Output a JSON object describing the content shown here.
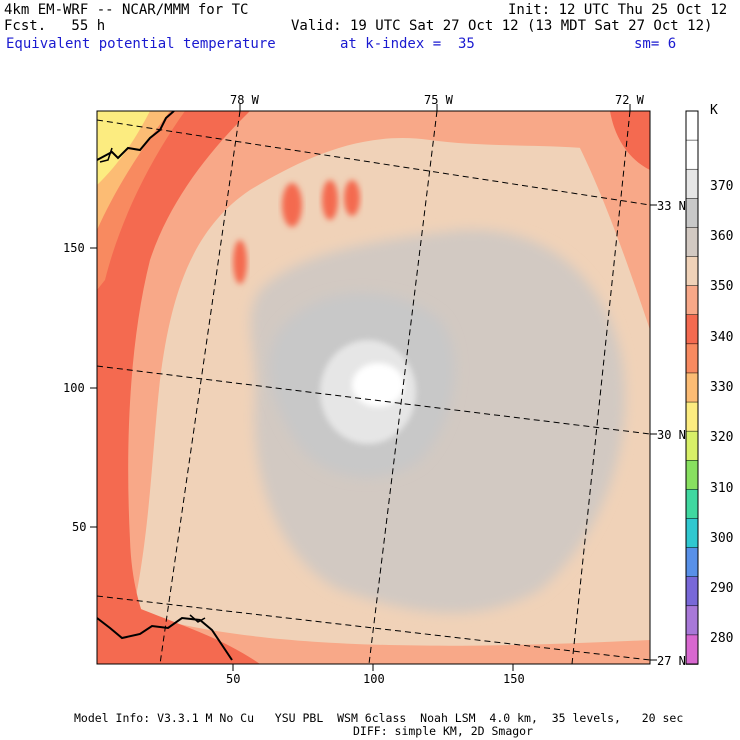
{
  "header": {
    "model_line": "4km EM-WRF -- NCAR/MMM for TC",
    "init_line": "Init: 12 UTC Thu 25 Oct 12",
    "fcst_line": "Fcst.   55 h",
    "valid_line": "Valid: 19 UTC Sat 27 Oct 12 (13 MDT Sat 27 Oct 12)",
    "field_name": "Equivalent potential temperature",
    "level": "at k-index =  35",
    "smooth": "sm= 6"
  },
  "map": {
    "lon_labels": [
      "78 W",
      "75 W",
      "72 W"
    ],
    "lat_labels": [
      "33 N",
      "30 N",
      "27 N"
    ],
    "x_ticks": [
      "50",
      "100",
      "150"
    ],
    "y_ticks": [
      "150",
      "100",
      "50"
    ]
  },
  "colorbar": {
    "unit": "K",
    "labels": [
      "370",
      "360",
      "350",
      "340",
      "330",
      "320",
      "310",
      "300",
      "290",
      "280"
    ],
    "colors": [
      "#ffffff",
      "#ffffff",
      "#e6e6e6",
      "#c8c8c8",
      "#d2c9c2",
      "#f0d2b8",
      "#f8a888",
      "#f46a50",
      "#f88a60",
      "#fcbc74",
      "#fcec80",
      "#d8f068",
      "#88e060",
      "#40d8a0",
      "#30c8d0",
      "#5890e8",
      "#7868d8",
      "#a878d8",
      "#d868d0"
    ]
  },
  "footer": {
    "line1": "Model Info: V3.3.1 M No Cu   YSU PBL  WSM 6class  Noah LSM  4.0 km,  35 levels,   20 sec",
    "line2": "DIFF: simple KM, 2D Smagor"
  }
}
